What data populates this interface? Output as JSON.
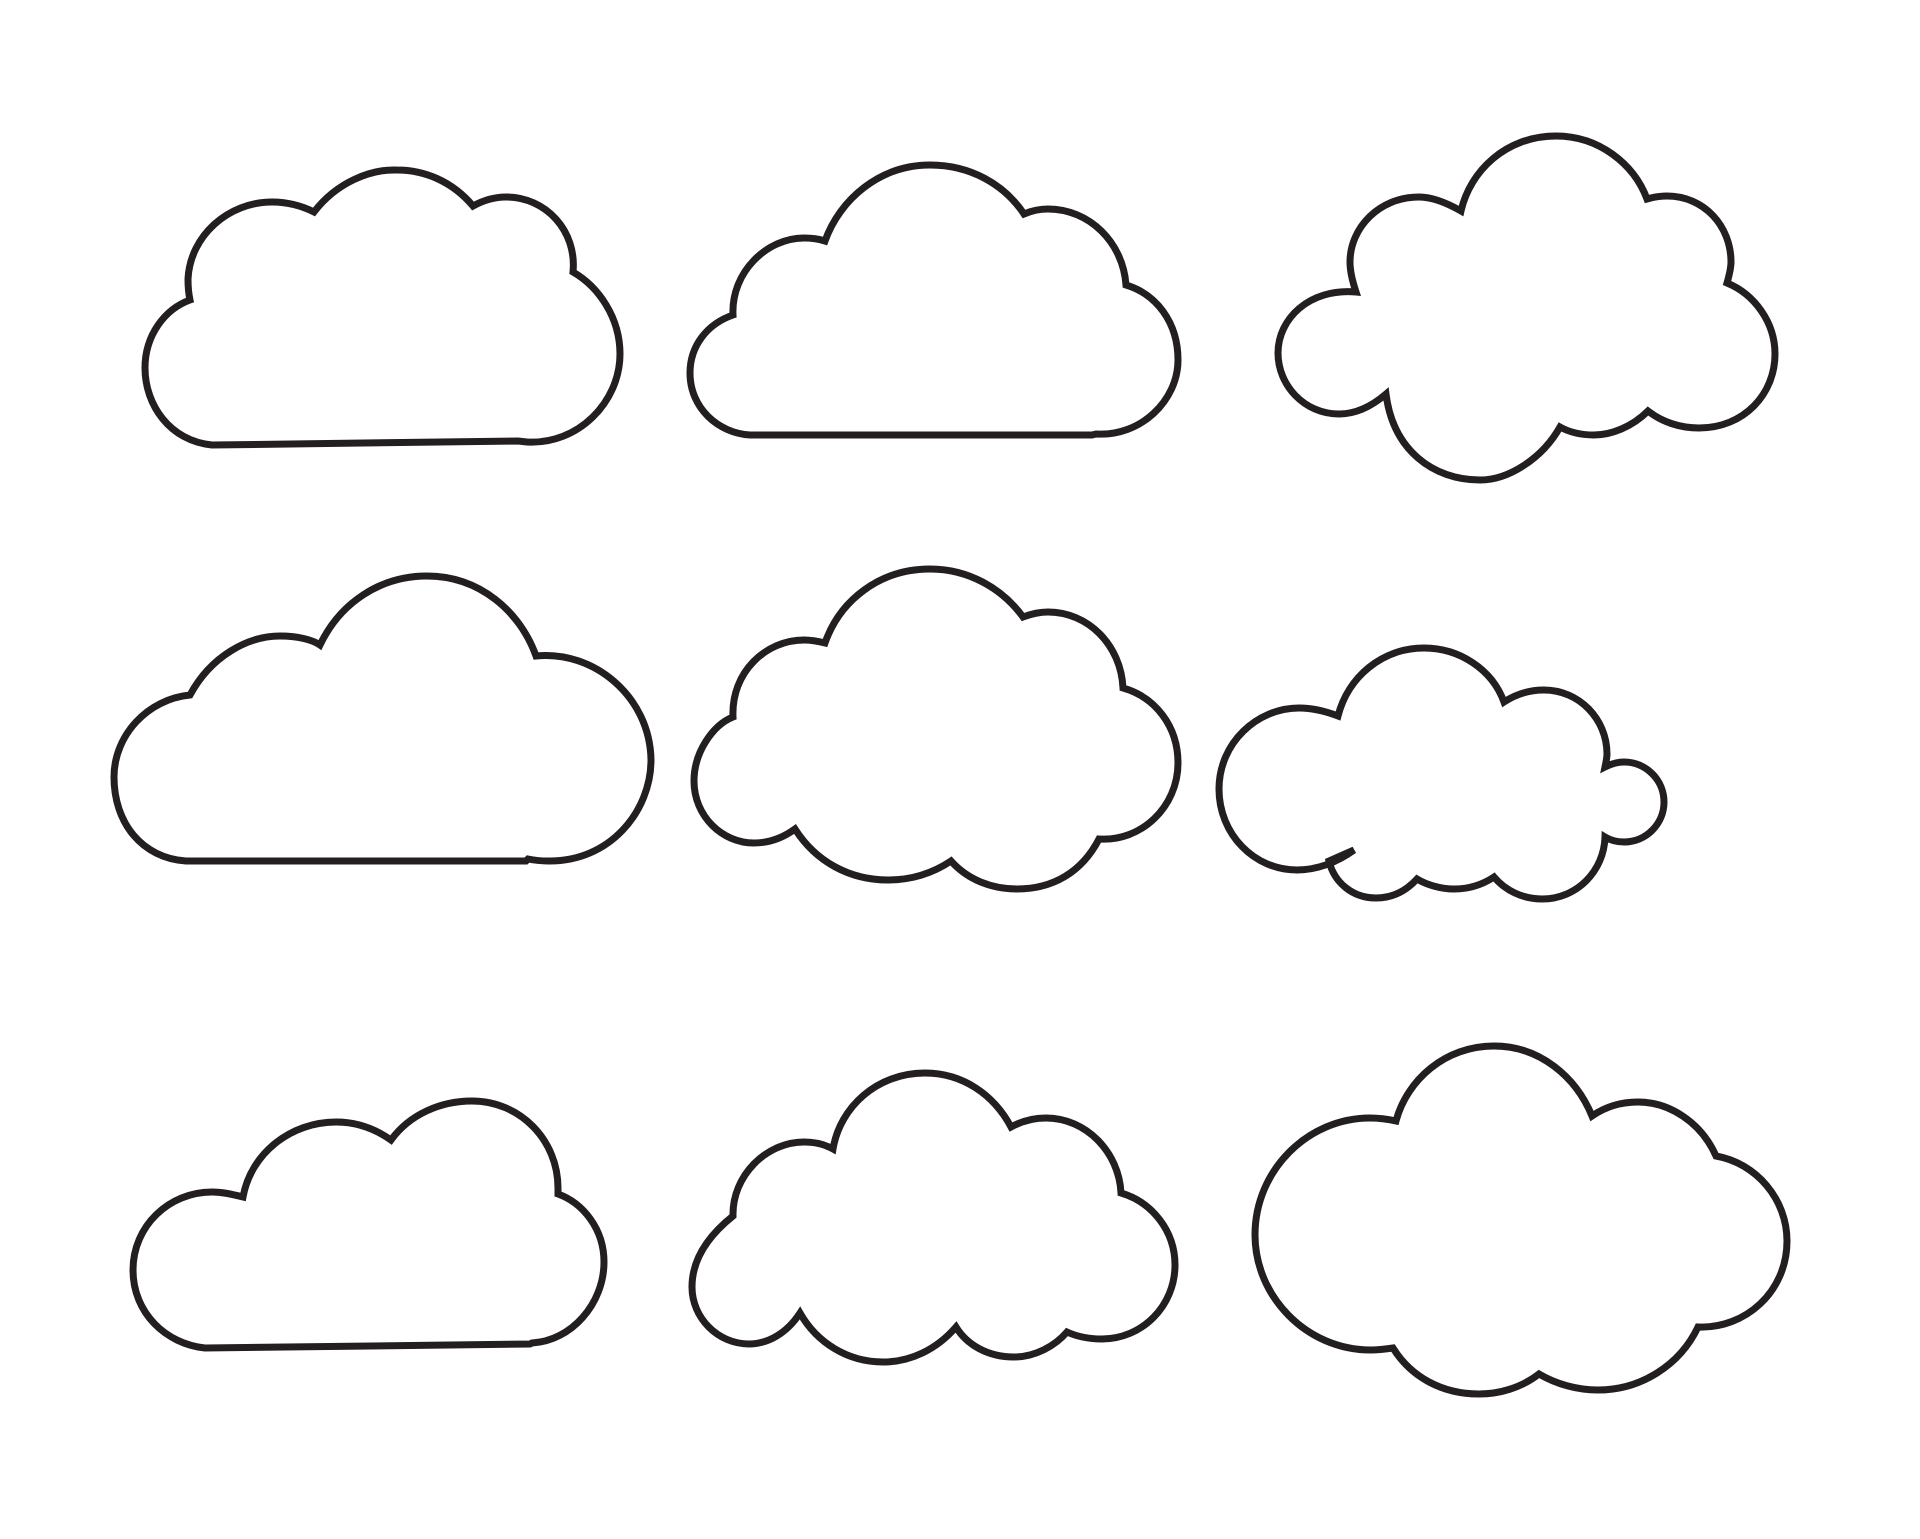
{
  "artwork": {
    "subject": "cloud-outline-set",
    "stroke_color": "#231f20",
    "background_color": "#ffffff",
    "cloud_count": 9,
    "clouds": [
      {
        "id": "cloud-1",
        "style": "flat-bottom"
      },
      {
        "id": "cloud-2",
        "style": "flat-bottom"
      },
      {
        "id": "cloud-3",
        "style": "scalloped"
      },
      {
        "id": "cloud-4",
        "style": "flat-bottom"
      },
      {
        "id": "cloud-5",
        "style": "scalloped"
      },
      {
        "id": "cloud-6",
        "style": "scalloped"
      },
      {
        "id": "cloud-7",
        "style": "flat-bottom"
      },
      {
        "id": "cloud-8",
        "style": "scalloped"
      },
      {
        "id": "cloud-9",
        "style": "scalloped"
      }
    ]
  }
}
